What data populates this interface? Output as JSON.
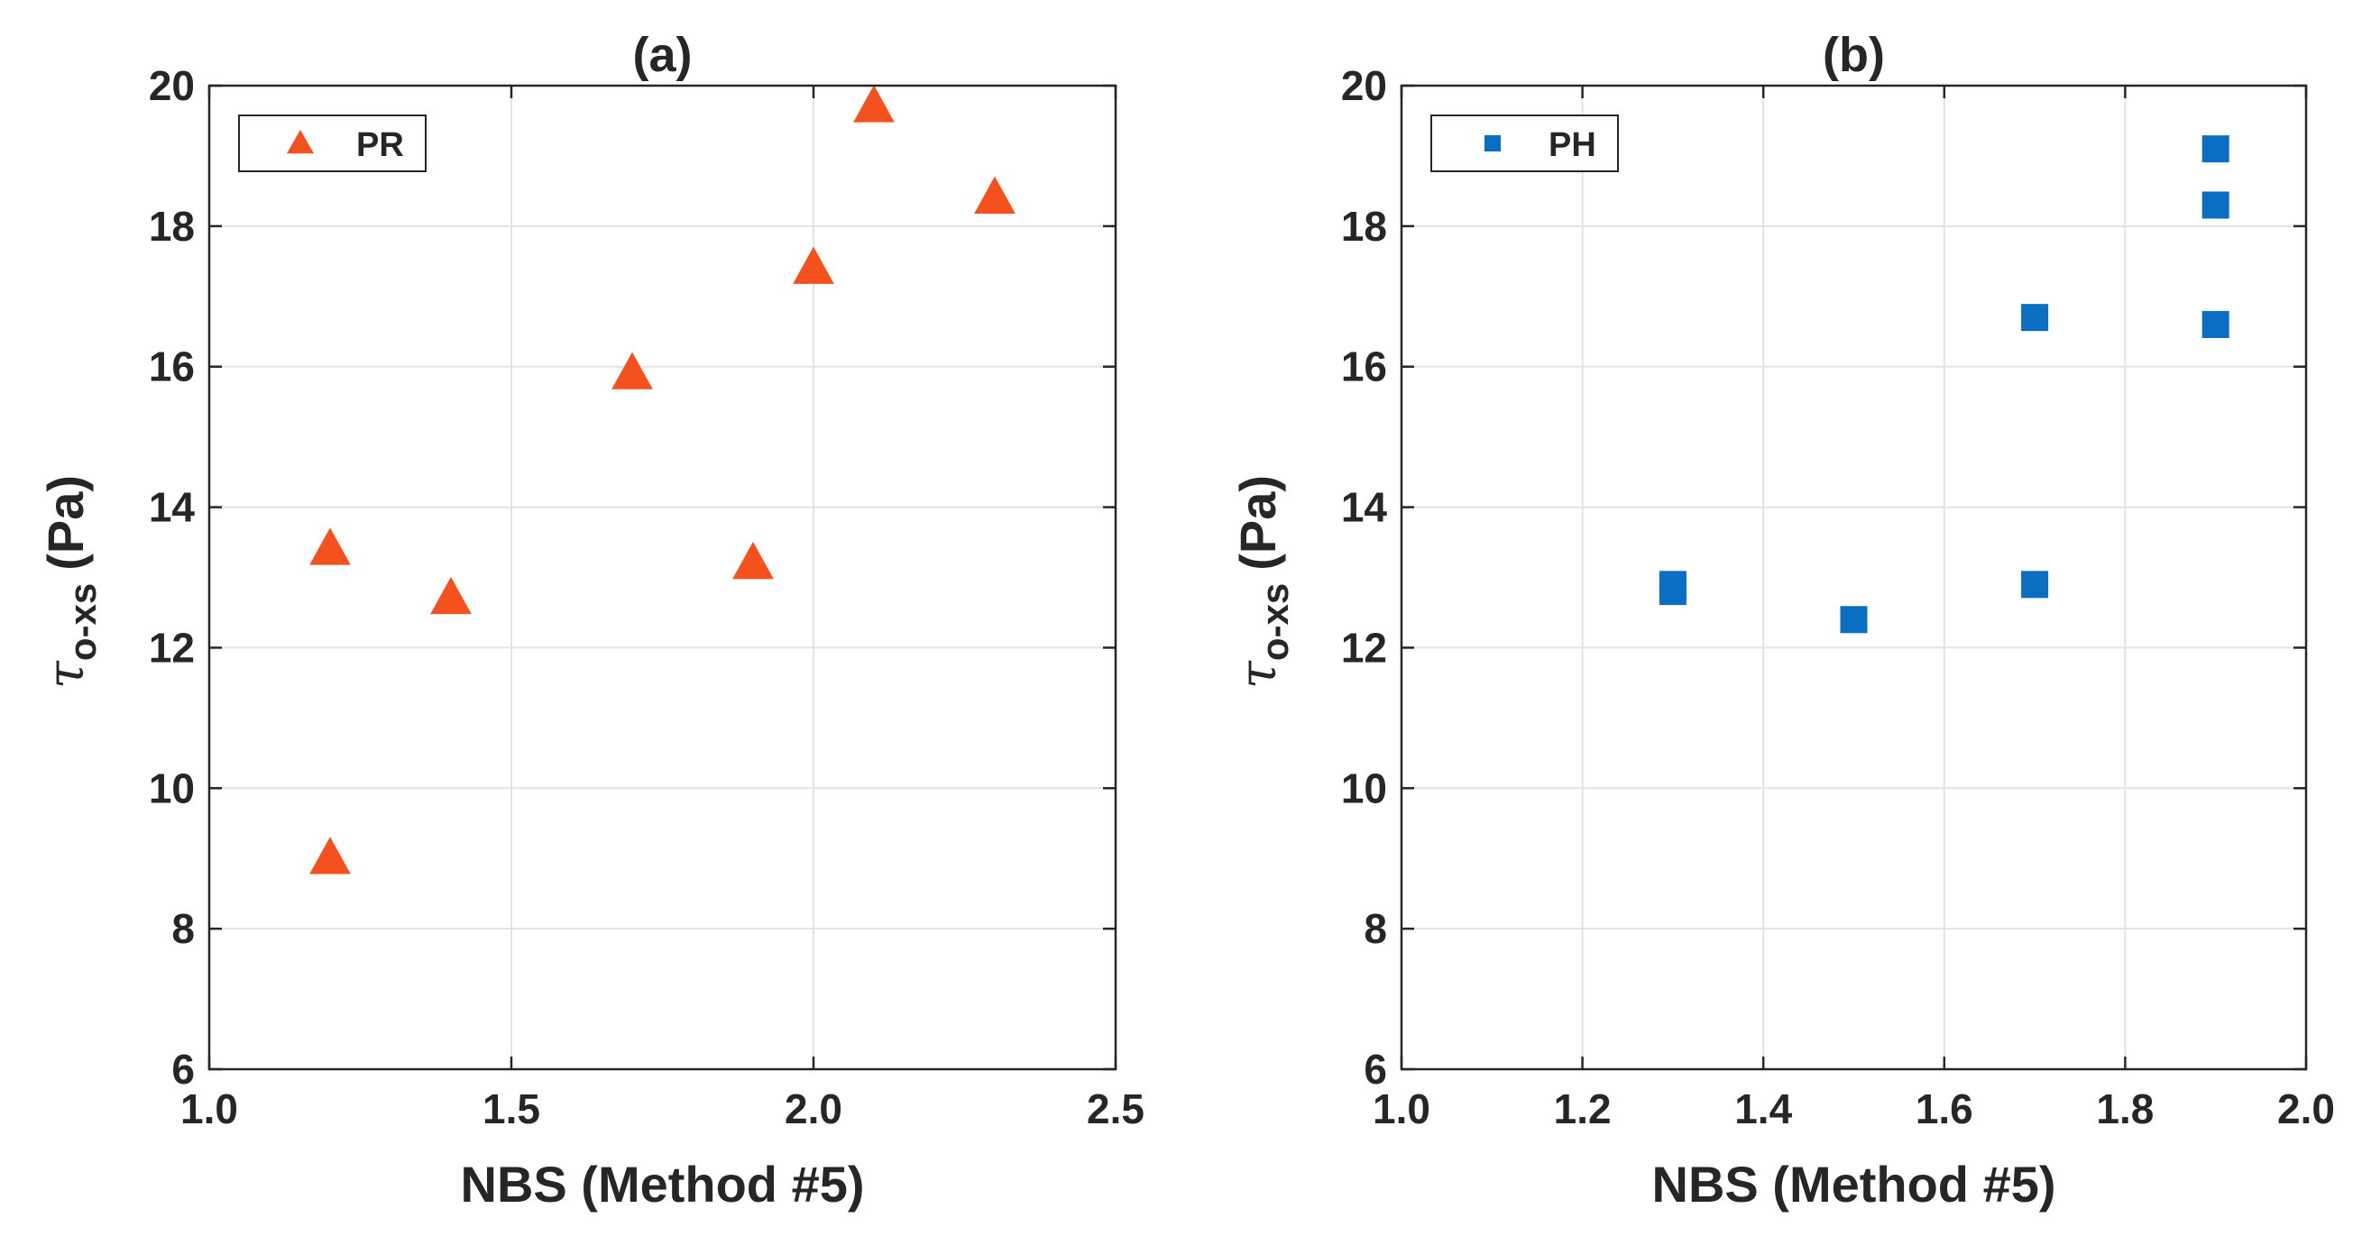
{
  "chart_data": [
    {
      "type": "scatter",
      "title": "(a)",
      "xlabel": "NBS (Method #5)",
      "ylabel": "τ o-xs (Pa)",
      "ylabel_symbol": "τ",
      "ylabel_subscript": "o-xs",
      "ylabel_unit": "(Pa)",
      "xlim": [
        1.0,
        2.5
      ],
      "ylim": [
        6,
        20
      ],
      "xticks": [
        1.0,
        1.5,
        2.0,
        2.5
      ],
      "xtick_labels": [
        "1.0",
        "1.5",
        "2.0",
        "2.5"
      ],
      "yticks": [
        6,
        8,
        10,
        12,
        14,
        16,
        18,
        20
      ],
      "ytick_labels": [
        "6",
        "8",
        "10",
        "12",
        "14",
        "16",
        "18",
        "20"
      ],
      "grid": true,
      "legend_position": "top-left",
      "series": [
        {
          "name": "PR",
          "marker": "triangle",
          "color": "#f4511e",
          "x": [
            1.2,
            1.2,
            1.4,
            1.7,
            1.9,
            2.0,
            2.1,
            2.3
          ],
          "y": [
            9.0,
            13.4,
            12.7,
            15.9,
            13.2,
            17.4,
            19.7,
            18.4
          ]
        }
      ]
    },
    {
      "type": "scatter",
      "title": "(b)",
      "xlabel": "NBS (Method #5)",
      "ylabel": "τ o-xs (Pa)",
      "ylabel_symbol": "τ",
      "ylabel_subscript": "o-xs",
      "ylabel_unit": "(Pa)",
      "xlim": [
        1.0,
        2.0
      ],
      "ylim": [
        6,
        20
      ],
      "xticks": [
        1.0,
        1.2,
        1.4,
        1.6,
        1.8,
        2.0
      ],
      "xtick_labels": [
        "1.0",
        "1.2",
        "1.4",
        "1.6",
        "1.8",
        "2.0"
      ],
      "yticks": [
        6,
        8,
        10,
        12,
        14,
        16,
        18,
        20
      ],
      "ytick_labels": [
        "6",
        "8",
        "10",
        "12",
        "14",
        "16",
        "18",
        "20"
      ],
      "grid": true,
      "legend_position": "top-left",
      "series": [
        {
          "name": "PH",
          "marker": "square",
          "color": "#0a6fc2",
          "x": [
            1.3,
            1.3,
            1.5,
            1.7,
            1.7,
            1.9,
            1.9,
            1.9
          ],
          "y": [
            12.8,
            12.9,
            12.4,
            12.9,
            16.7,
            16.6,
            18.3,
            19.1
          ]
        }
      ]
    }
  ]
}
